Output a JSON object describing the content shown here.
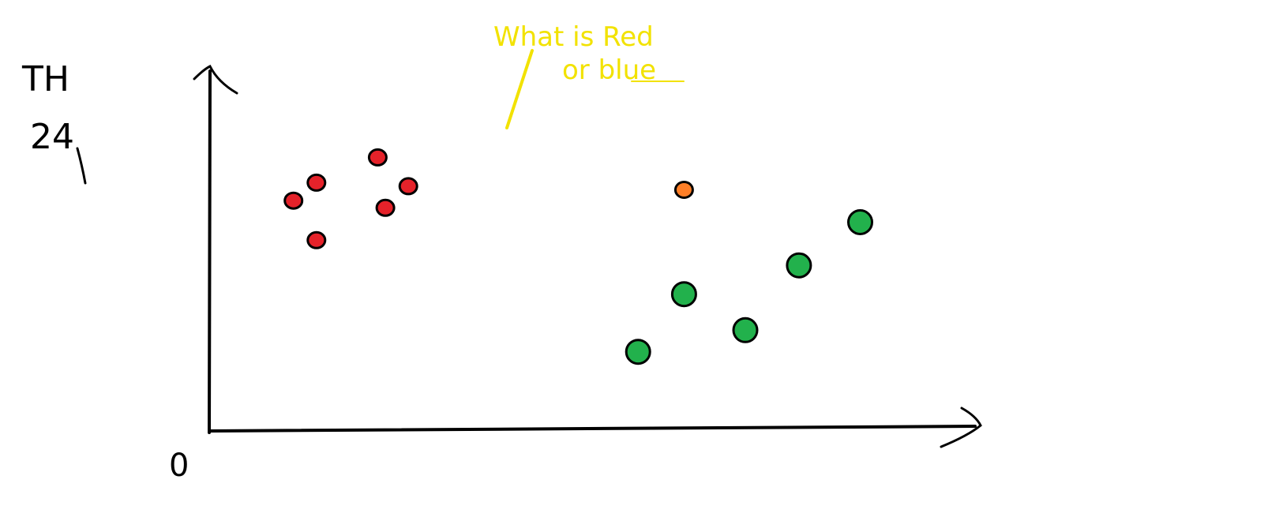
{
  "annotation": {
    "line1": "What is Red",
    "line2": "or blue",
    "color": "#f2e200"
  },
  "origin_label": "0",
  "y_axis_label": {
    "line1": "TH",
    "line2": "24"
  },
  "colors": {
    "ink": "#000000",
    "red": "#e5222a",
    "green": "#22b14c",
    "orange": "#ff7f27"
  },
  "points": [
    {
      "group": "red",
      "x": 2.2,
      "y": 7.6
    },
    {
      "group": "red",
      "x": 1.4,
      "y": 6.9
    },
    {
      "group": "red",
      "x": 2.6,
      "y": 6.8
    },
    {
      "group": "red",
      "x": 1.1,
      "y": 6.4
    },
    {
      "group": "red",
      "x": 2.3,
      "y": 6.2
    },
    {
      "group": "red",
      "x": 1.4,
      "y": 5.3
    },
    {
      "group": "orange",
      "x": 6.2,
      "y": 6.7
    },
    {
      "group": "green",
      "x": 8.5,
      "y": 5.8
    },
    {
      "group": "green",
      "x": 7.7,
      "y": 4.6
    },
    {
      "group": "green",
      "x": 6.2,
      "y": 3.8
    },
    {
      "group": "green",
      "x": 7.0,
      "y": 2.8
    },
    {
      "group": "green",
      "x": 5.6,
      "y": 2.2
    }
  ]
}
